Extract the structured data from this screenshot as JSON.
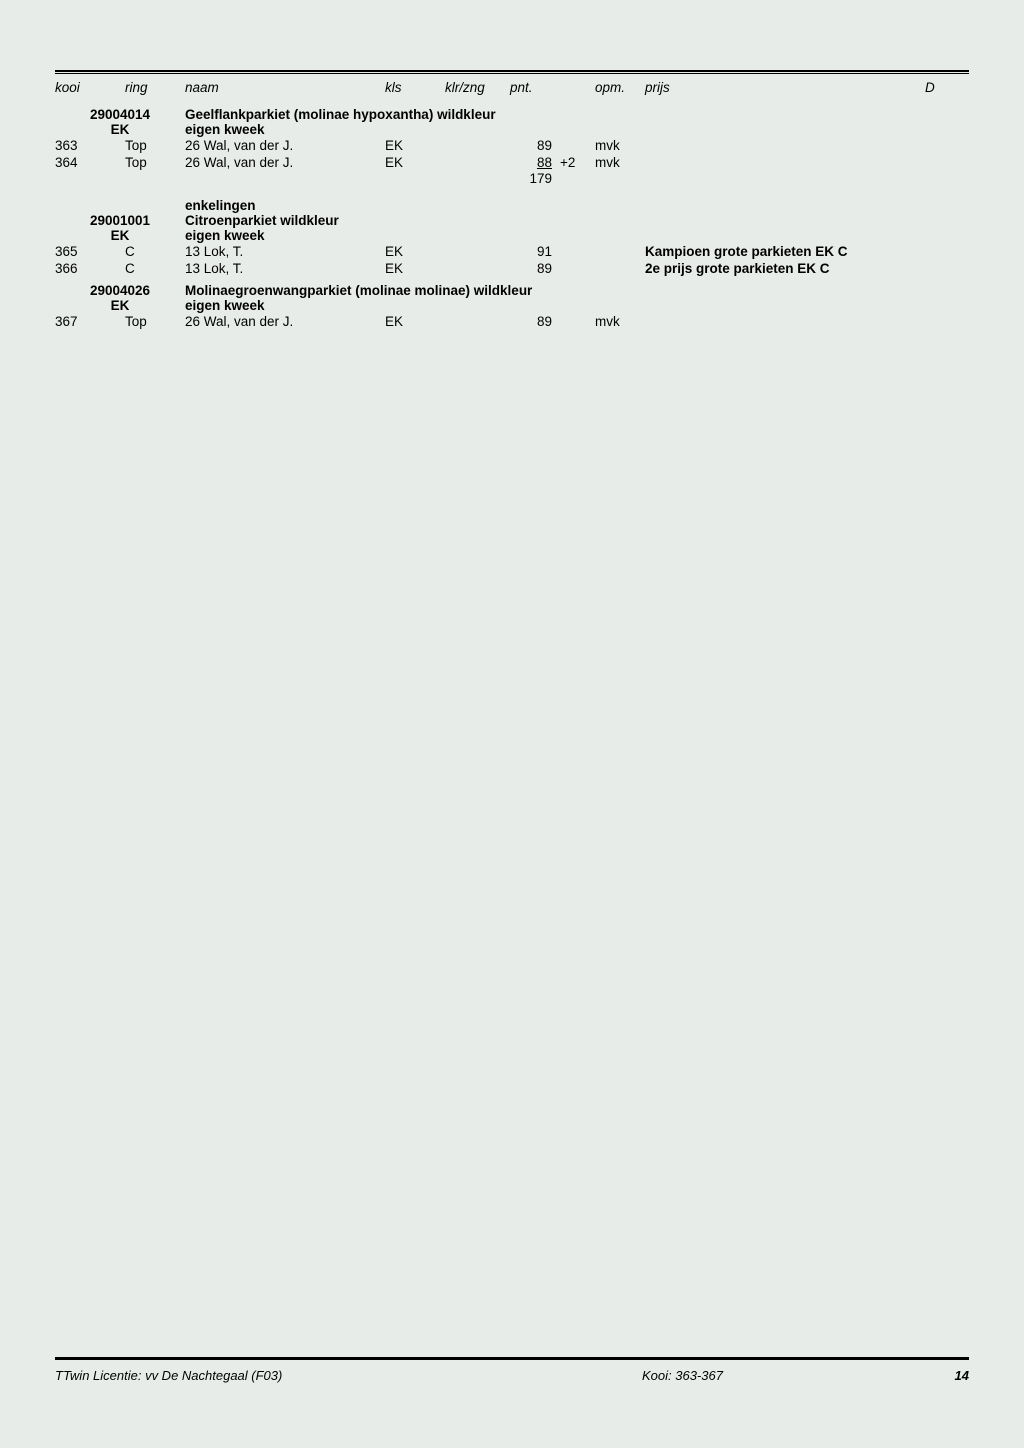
{
  "headers": {
    "kooi": "kooi",
    "ring": "ring",
    "naam": "naam",
    "kls": "kls",
    "klrzng": "klr/zng",
    "pnt": "pnt.",
    "opm": "opm.",
    "prijs": "prijs",
    "d": "D"
  },
  "sections": [
    {
      "code": "29004014",
      "ek": "EK",
      "title": "Geelflankparkiet (molinae hypoxantha) wildkleur",
      "subtitle": "eigen kweek",
      "note": "",
      "rows": [
        {
          "kooi": "363",
          "ring": "Top",
          "naam": "26 Wal, van der J.",
          "kls": "EK",
          "klrzng": "",
          "pnt": "89",
          "pnt_extra": "",
          "opm": "mvk",
          "prijs": ""
        },
        {
          "kooi": "364",
          "ring": "Top",
          "naam": "26 Wal, van der J.",
          "kls": "EK",
          "klrzng": "",
          "pnt": "88",
          "pnt_underline": true,
          "pnt_extra": "+2",
          "opm": "mvk",
          "prijs": ""
        }
      ],
      "total": "179"
    },
    {
      "code": "29001001",
      "ek": "EK",
      "title": "Citroenparkiet wildkleur",
      "subtitle": "eigen kweek",
      "note": "enkelingen",
      "rows": [
        {
          "kooi": "365",
          "ring": "C",
          "naam": "13 Lok, T.",
          "kls": "EK",
          "klrzng": "",
          "pnt": "91",
          "pnt_extra": "",
          "opm": "",
          "prijs": "Kampioen grote parkieten EK C",
          "prijs_bold": true
        },
        {
          "kooi": "366",
          "ring": "C",
          "naam": "13 Lok, T.",
          "kls": "EK",
          "klrzng": "",
          "pnt": "89",
          "pnt_extra": "",
          "opm": "",
          "prijs": "2e prijs grote parkieten EK C",
          "prijs_bold": true
        }
      ],
      "total": ""
    },
    {
      "code": "29004026",
      "ek": "EK",
      "title": "Molinaegroenwangparkiet (molinae molinae) wildkleur",
      "subtitle": "eigen kweek",
      "note": "",
      "rows": [
        {
          "kooi": "367",
          "ring": "Top",
          "naam": "26 Wal, van der J.",
          "kls": "EK",
          "klrzng": "",
          "pnt": "89",
          "pnt_extra": "",
          "opm": "mvk",
          "prijs": ""
        }
      ],
      "total": ""
    }
  ],
  "footer": {
    "licentie": "TTwin Licentie: vv De Nachtegaal (F03)",
    "kooi_range": "Kooi: 363-367",
    "page_num": "14"
  }
}
